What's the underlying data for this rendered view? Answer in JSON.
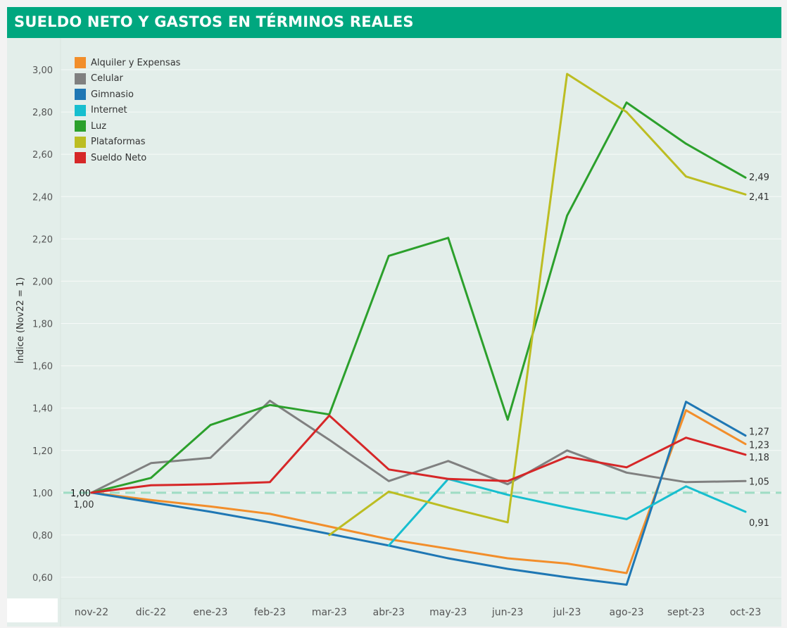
{
  "header": {
    "title": "SUELDO NETO Y GASTOS EN TÉRMINOS REALES"
  },
  "colors": {
    "header_bg": "#00a77f",
    "plot_bg": "#e3eeea",
    "baseline": "#9fdcc4"
  },
  "chart_data": {
    "type": "line",
    "title": "SUELDO NETO Y GASTOS EN TÉRMINOS REALES",
    "ylabel": "Índice (Nov22 = 1)",
    "xlabel": "",
    "categories": [
      "nov-22",
      "dic-22",
      "ene-23",
      "feb-23",
      "mar-23",
      "abr-23",
      "may-23",
      "jun-23",
      "jul-23",
      "ago-23",
      "sept-23",
      "oct-23"
    ],
    "ylim": [
      0.52,
      3.12
    ],
    "yticks": [
      0.6,
      0.8,
      1.0,
      1.2,
      1.4,
      1.6,
      1.8,
      2.0,
      2.2,
      2.4,
      2.6,
      2.8,
      3.0
    ],
    "ytick_labels": [
      "0,60",
      "0,80",
      "1,00",
      "1,20",
      "1,40",
      "1,60",
      "1,80",
      "2,00",
      "2,20",
      "2,40",
      "2,60",
      "2,80",
      "3,00"
    ],
    "reference_line": 1.0,
    "legend_position": "top-left",
    "grid": true,
    "series": [
      {
        "name": "Alquiler y Expensas",
        "color": "#f28e2b",
        "values": [
          1.0,
          0.965,
          0.935,
          0.9,
          0.84,
          0.78,
          0.735,
          0.69,
          0.665,
          0.62,
          1.39,
          1.23
        ],
        "end_label": "1,23"
      },
      {
        "name": "Celular",
        "color": "#808080",
        "values": [
          1.0,
          1.14,
          1.165,
          1.435,
          1.25,
          1.055,
          1.15,
          1.04,
          1.2,
          1.095,
          1.05,
          1.055
        ],
        "end_label": "1,05"
      },
      {
        "name": "Gimnasio",
        "color": "#1f77b4",
        "values": [
          1.0,
          0.955,
          0.91,
          0.86,
          0.805,
          0.75,
          0.69,
          0.64,
          0.6,
          0.565,
          1.43,
          1.27
        ],
        "end_label": "1,27"
      },
      {
        "name": "Internet",
        "color": "#17becf",
        "values": [
          null,
          null,
          null,
          null,
          null,
          0.75,
          1.065,
          0.99,
          0.93,
          0.875,
          1.03,
          0.91
        ],
        "end_label": "0,91"
      },
      {
        "name": "Luz",
        "color": "#2ca02c",
        "values": [
          1.0,
          1.07,
          1.32,
          1.415,
          1.37,
          2.12,
          2.205,
          1.345,
          2.31,
          2.845,
          2.65,
          2.49
        ],
        "end_label": "2,49"
      },
      {
        "name": "Plataformas",
        "color": "#bcbd22",
        "values": [
          null,
          null,
          null,
          null,
          0.8,
          1.005,
          0.93,
          0.86,
          2.98,
          2.8,
          2.495,
          2.41
        ],
        "end_label": "2,41"
      },
      {
        "name": "Sueldo Neto",
        "color": "#d62728",
        "values": [
          1.0,
          1.035,
          1.04,
          1.05,
          1.365,
          1.11,
          1.065,
          1.055,
          1.17,
          1.12,
          1.26,
          1.18
        ],
        "end_label": "1,18"
      }
    ],
    "start_labels": [
      "1,00",
      "1,00"
    ]
  }
}
